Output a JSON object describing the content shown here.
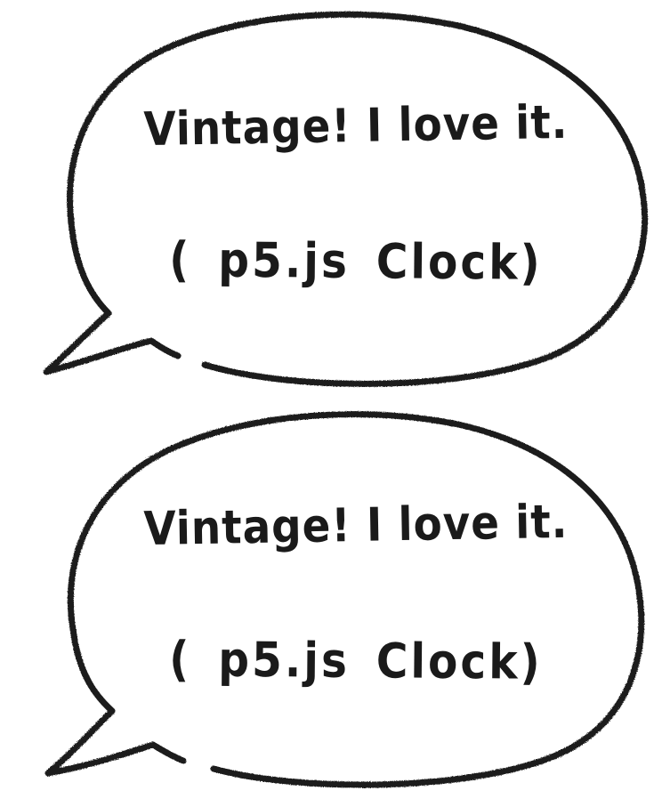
{
  "bubbles": [
    {
      "line1": "Vintage! I love it.",
      "line2": "( p5.js Clock)"
    },
    {
      "line1": "Vintage! I love it.",
      "line2": "( p5.js Clock)"
    }
  ],
  "colors": {
    "ink": "#1a1a1a",
    "background": "#ffffff"
  }
}
